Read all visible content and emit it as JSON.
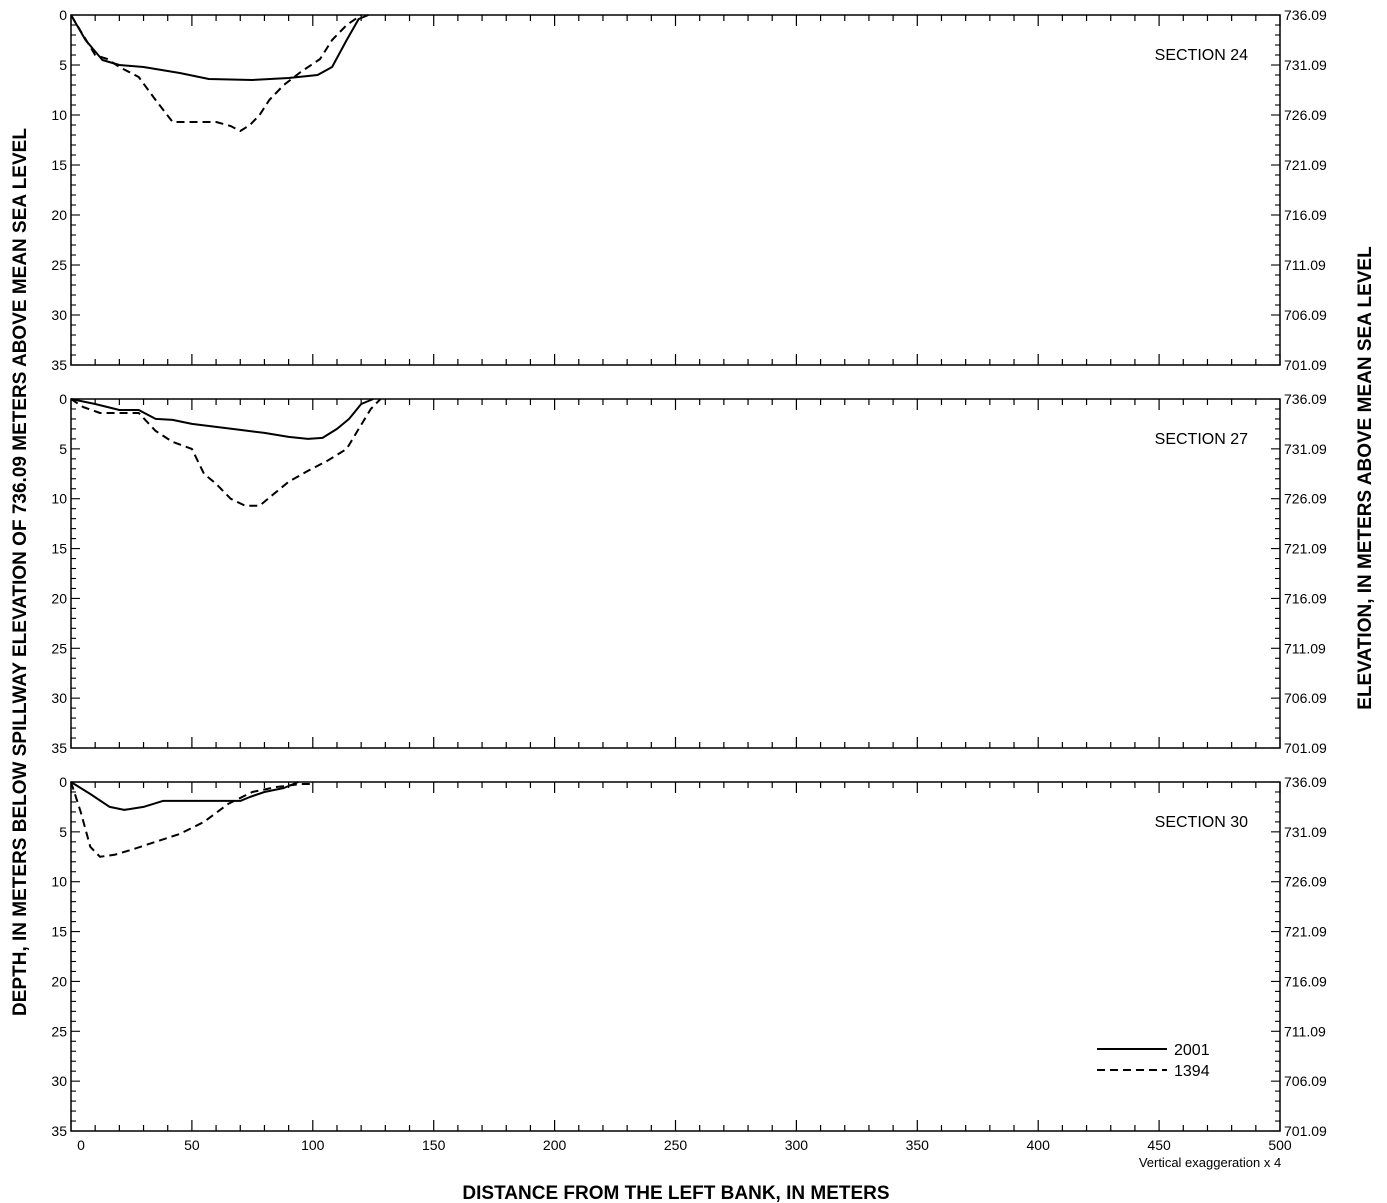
{
  "figure": {
    "xlabel": "DISTANCE FROM THE LEFT BANK, IN METERS",
    "ylabel_left": "DEPTH, IN METERS BELOW SPILLWAY ELEVATION OF 736.09 METERS ABOVE MEAN SEA LEVEL",
    "ylabel_right": "ELEVATION, IN METERS ABOVE MEAN SEA LEVEL",
    "vertical_exaggeration": "Vertical exaggeration x 4"
  },
  "legend": {
    "items": [
      {
        "label": "2001",
        "style": "solid"
      },
      {
        "label": "1394",
        "style": "dashed"
      }
    ],
    "placement": "bottom-right of lowest panel"
  },
  "chart_data": [
    {
      "type": "line",
      "title": "SECTION 24",
      "xlim": [
        0,
        500
      ],
      "ylim": [
        0,
        35
      ],
      "y_inverted": true,
      "x_ticks": [
        "0",
        "50",
        "100",
        "150",
        "200",
        "250",
        "300",
        "350",
        "400",
        "450",
        "500"
      ],
      "y_ticks_left": [
        "0",
        "5",
        "10",
        "15",
        "20",
        "25",
        "30",
        "35"
      ],
      "y_ticks_right": [
        "736.09",
        "731.09",
        "726.09",
        "721.09",
        "716.09",
        "711.09",
        "706.09",
        "701.09"
      ],
      "series": [
        {
          "name": "2001",
          "style": "solid",
          "x": [
            0,
            6,
            13,
            20,
            30,
            45,
            57,
            75,
            90,
            102,
            108,
            114,
            119,
            123
          ],
          "y": [
            0,
            2.5,
            4.5,
            5,
            5.2,
            5.8,
            6.4,
            6.5,
            6.3,
            6,
            5.2,
            2.5,
            0.4,
            0
          ]
        },
        {
          "name": "1394",
          "style": "dashed",
          "x": [
            0,
            5,
            10,
            15,
            20,
            28,
            35,
            42,
            50,
            60,
            66,
            70,
            74,
            78,
            82,
            88,
            95,
            103,
            108,
            114,
            120
          ],
          "y": [
            0,
            2,
            4,
            4.4,
            5.2,
            6.2,
            8.5,
            10.7,
            10.7,
            10.7,
            11.1,
            11.6,
            11,
            10,
            8.5,
            7,
            5.7,
            4.4,
            2.5,
            1,
            0
          ]
        }
      ]
    },
    {
      "type": "line",
      "title": "SECTION 27",
      "xlim": [
        0,
        500
      ],
      "ylim": [
        0,
        35
      ],
      "y_inverted": true,
      "x_ticks": [
        "0",
        "50",
        "100",
        "150",
        "200",
        "250",
        "300",
        "350",
        "400",
        "450",
        "500"
      ],
      "y_ticks_left": [
        "0",
        "5",
        "10",
        "15",
        "20",
        "25",
        "30",
        "35"
      ],
      "y_ticks_right": [
        "736.09",
        "731.09",
        "726.09",
        "721.09",
        "716.09",
        "711.09",
        "706.09",
        "701.09"
      ],
      "series": [
        {
          "name": "2001",
          "style": "solid",
          "x": [
            0,
            10,
            20,
            28,
            35,
            42,
            50,
            60,
            70,
            80,
            90,
            98,
            104,
            110,
            115,
            120,
            125
          ],
          "y": [
            0,
            0.5,
            1.1,
            1.1,
            2,
            2.1,
            2.5,
            2.8,
            3.1,
            3.4,
            3.8,
            4,
            3.9,
            3,
            2,
            0.5,
            0
          ]
        },
        {
          "name": "1394",
          "style": "dashed",
          "x": [
            0,
            5,
            12,
            20,
            28,
            35,
            42,
            50,
            55,
            60,
            66,
            72,
            78,
            84,
            90,
            98,
            106,
            114,
            119,
            124,
            128
          ],
          "y": [
            0,
            0.8,
            1.4,
            1.4,
            1.4,
            3.2,
            4.3,
            5,
            7.5,
            8.5,
            10,
            10.7,
            10.7,
            9.5,
            8.3,
            7.2,
            6.2,
            5,
            3,
            1,
            0
          ]
        }
      ]
    },
    {
      "type": "line",
      "title": "SECTION 30",
      "xlim": [
        0,
        500
      ],
      "ylim": [
        0,
        35
      ],
      "y_inverted": true,
      "x_ticks": [
        "0",
        "50",
        "100",
        "150",
        "200",
        "250",
        "300",
        "350",
        "400",
        "450",
        "500"
      ],
      "y_ticks_left": [
        "0",
        "5",
        "10",
        "15",
        "20",
        "25",
        "30",
        "35"
      ],
      "y_ticks_right": [
        "736.09",
        "731.09",
        "726.09",
        "721.09",
        "716.09",
        "711.09",
        "706.09",
        "701.09"
      ],
      "series": [
        {
          "name": "2001",
          "style": "solid",
          "x": [
            0,
            8,
            16,
            22,
            30,
            38,
            50,
            60,
            70,
            74,
            80,
            88,
            94
          ],
          "y": [
            0,
            1.2,
            2.5,
            2.8,
            2.5,
            1.9,
            1.9,
            1.9,
            1.9,
            1.5,
            1,
            0.6,
            0
          ]
        },
        {
          "name": "1394",
          "style": "dashed",
          "x": [
            0,
            4,
            8,
            12,
            18,
            25,
            35,
            45,
            55,
            65,
            75,
            85,
            95,
            100
          ],
          "y": [
            0,
            3,
            6.5,
            7.5,
            7.3,
            6.8,
            6,
            5.2,
            4,
            2.2,
            1,
            0.5,
            0.2,
            0.2
          ]
        }
      ]
    }
  ]
}
